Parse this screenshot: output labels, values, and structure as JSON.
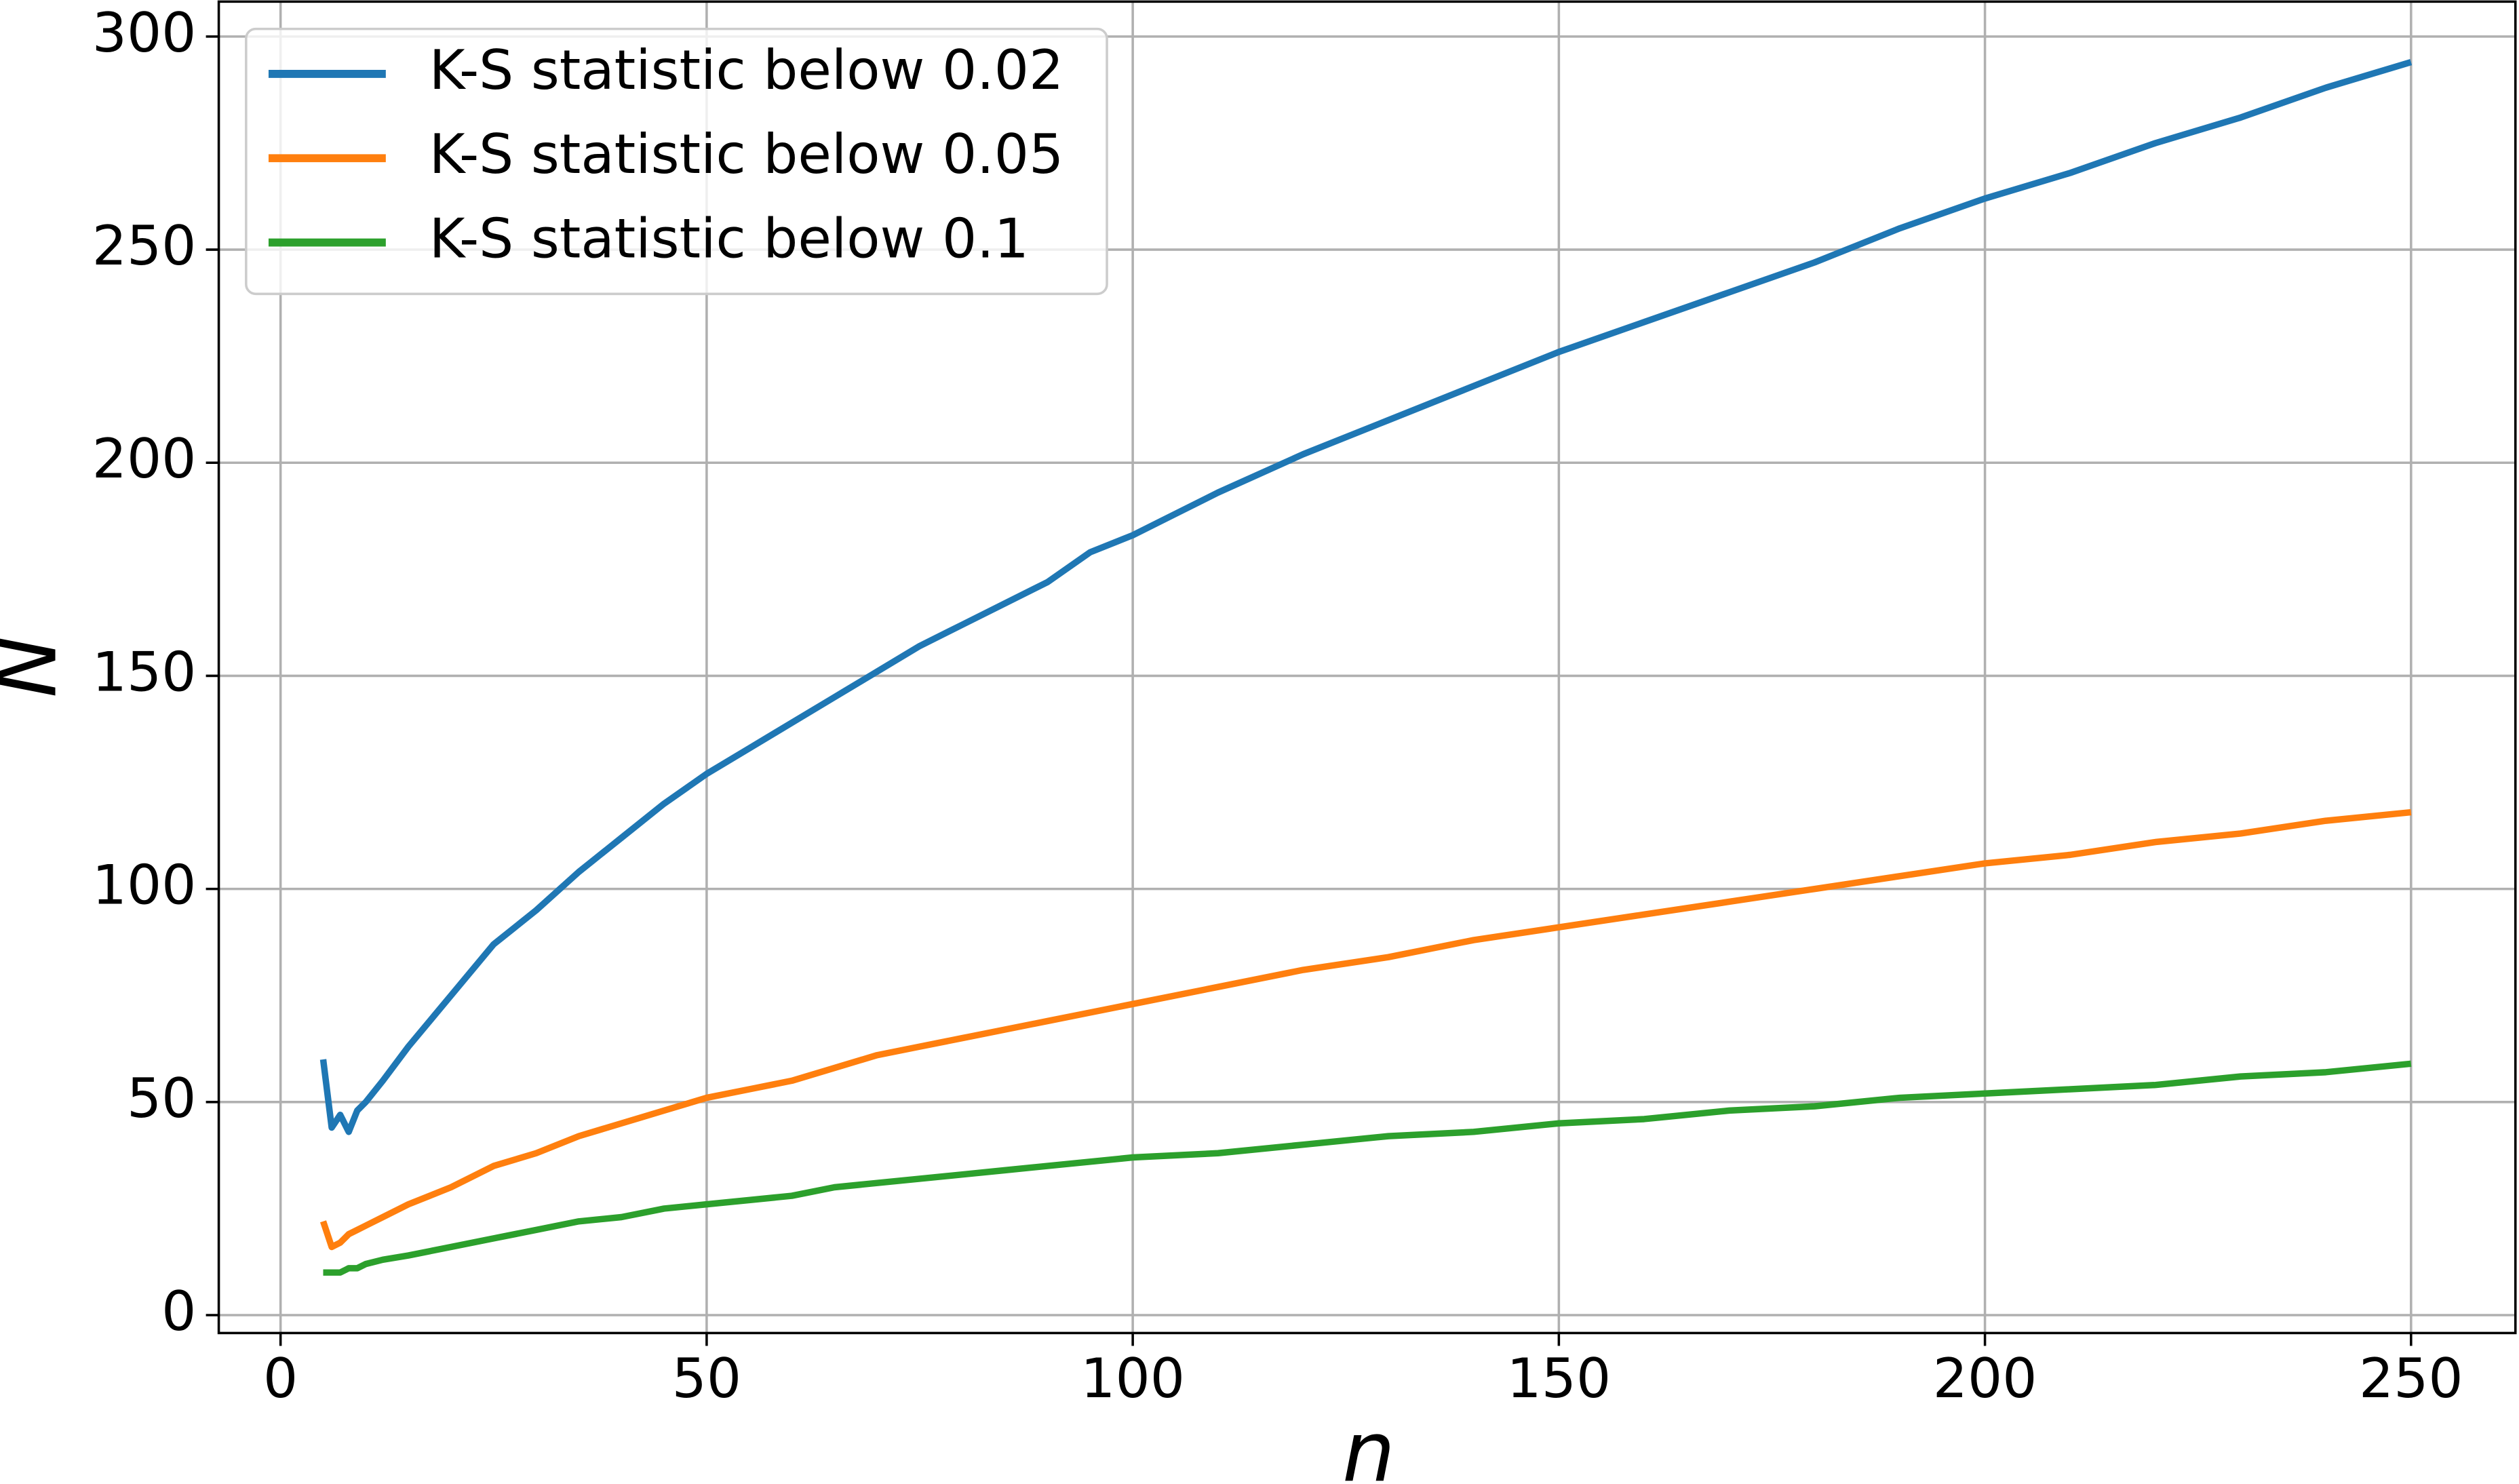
{
  "chart_data": {
    "type": "line",
    "x_label": "n",
    "y_label": "N",
    "x": [
      5,
      6,
      7,
      8,
      9,
      10,
      12,
      15,
      20,
      25,
      30,
      35,
      40,
      45,
      50,
      55,
      60,
      65,
      70,
      75,
      80,
      85,
      90,
      95,
      100,
      110,
      120,
      130,
      140,
      150,
      160,
      170,
      180,
      190,
      200,
      210,
      220,
      230,
      240,
      250
    ],
    "series": [
      {
        "name": "K-S statistic below 0.02",
        "color": "#1f77b4",
        "values": [
          60,
          44,
          47,
          43,
          48,
          50,
          55,
          63,
          75,
          87,
          95,
          104,
          112,
          120,
          127,
          133,
          139,
          145,
          151,
          157,
          162,
          167,
          172,
          179,
          183,
          193,
          202,
          210,
          218,
          226,
          233,
          240,
          247,
          255,
          262,
          268,
          275,
          281,
          288,
          294
        ]
      },
      {
        "name": "K-S statistic below 0.05",
        "color": "#ff7f0e",
        "values": [
          22,
          16,
          17,
          19,
          20,
          21,
          23,
          26,
          30,
          35,
          38,
          42,
          45,
          48,
          51,
          53,
          55,
          58,
          61,
          63,
          65,
          67,
          69,
          71,
          73,
          77,
          81,
          84,
          88,
          91,
          94,
          97,
          100,
          103,
          106,
          108,
          111,
          113,
          116,
          118
        ]
      },
      {
        "name": "K-S statistic below 0.1",
        "color": "#2ca02c",
        "values": [
          10,
          10,
          10,
          11,
          11,
          12,
          13,
          14,
          16,
          18,
          20,
          22,
          23,
          25,
          26,
          27,
          28,
          30,
          31,
          32,
          33,
          34,
          35,
          36,
          37,
          38,
          40,
          42,
          43,
          45,
          46,
          48,
          49,
          51,
          52,
          53,
          54,
          56,
          57,
          59
        ]
      }
    ],
    "xlim": [
      -7.25,
      262.25
    ],
    "ylim": [
      -4.2,
      308.2
    ],
    "xticks": [
      0,
      50,
      100,
      150,
      200,
      250
    ],
    "yticks": [
      0,
      50,
      100,
      150,
      200,
      250,
      300
    ],
    "grid": true,
    "legend": "upper left"
  }
}
